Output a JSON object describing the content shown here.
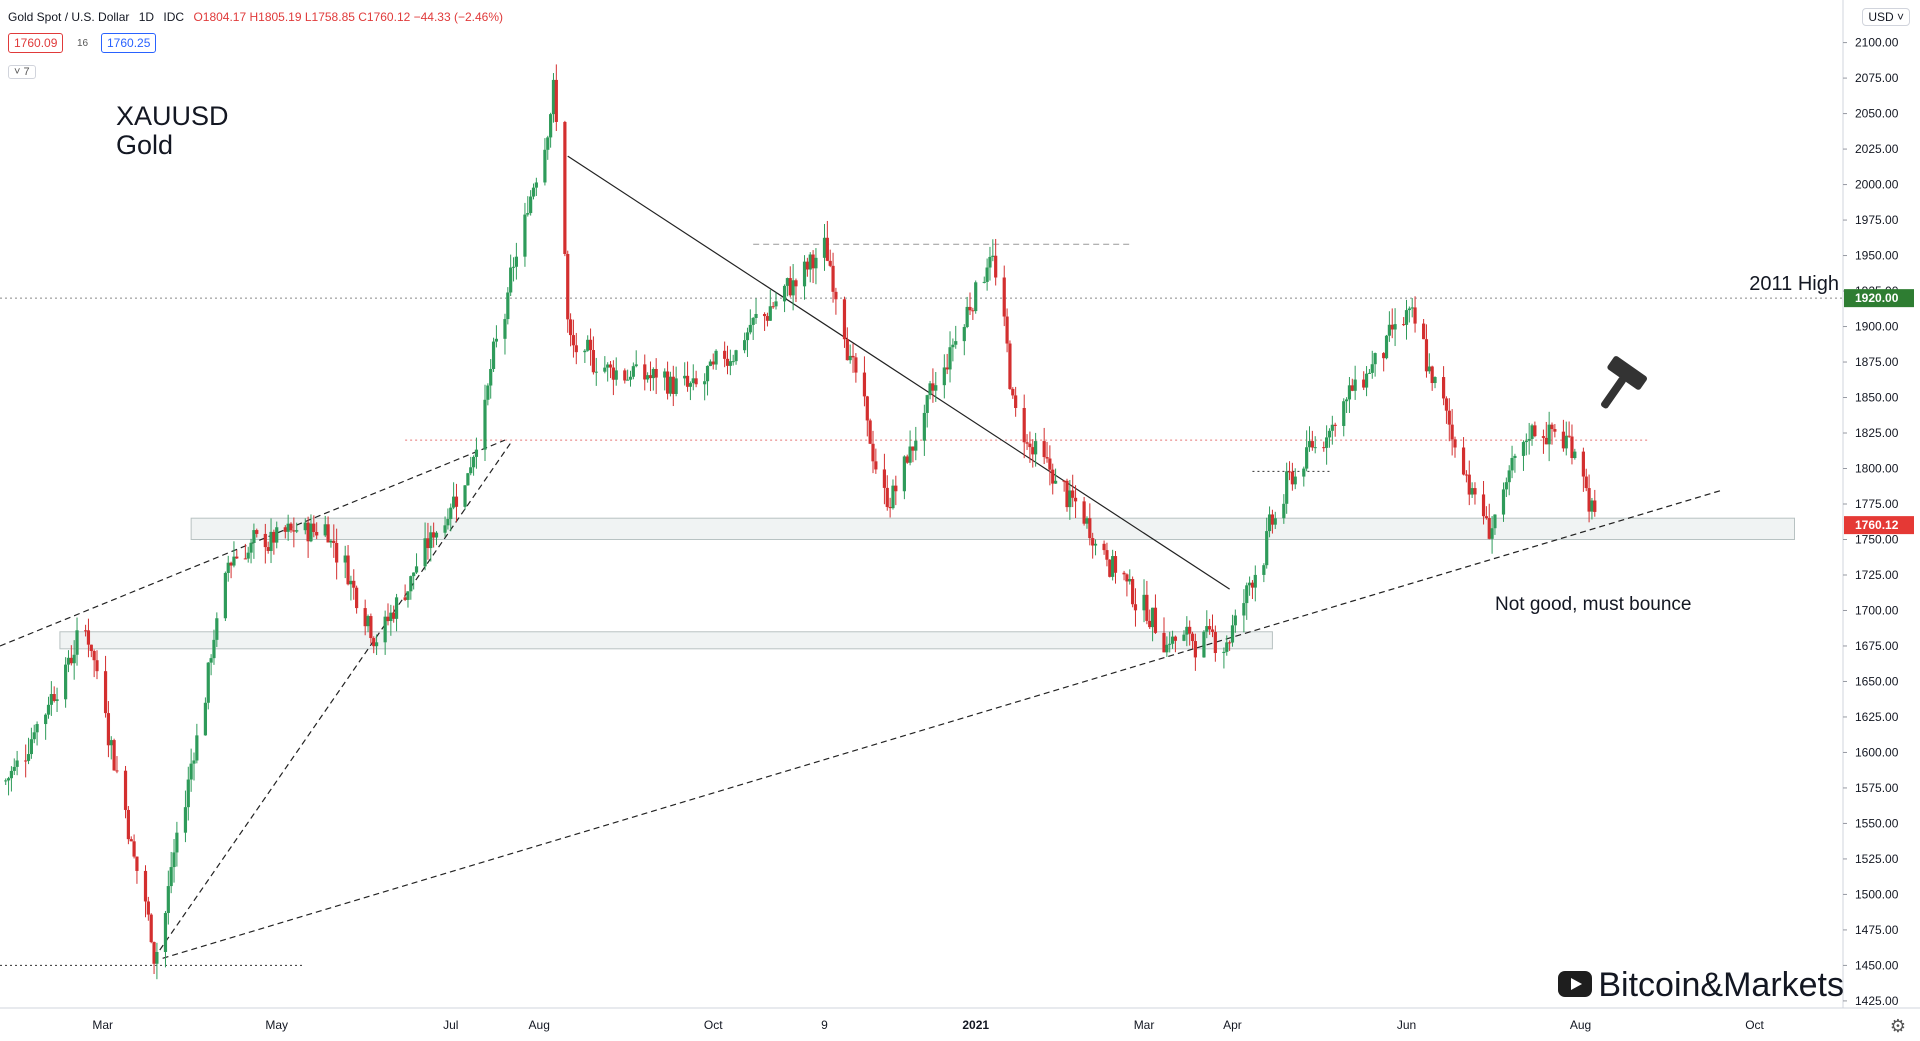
{
  "header": {
    "symbol": "Gold Spot / U.S. Dollar",
    "interval": "1D",
    "source": "IDC",
    "ohlc": "O1804.17 H1805.19 L1758.85 C1760.12 −44.33 (−2.46%)",
    "bid": "1760.09",
    "spread": "16",
    "ask": "1760.25",
    "indicators_toggle": "˅ 7"
  },
  "title": {
    "line1": "XAUUSD",
    "line2": "Gold"
  },
  "annotations": {
    "high": "2011 High",
    "bounce": "Not good, must bounce"
  },
  "currency": "USD ˅",
  "settings_icon": "⚙",
  "watermark": {
    "text": "Bitcoin&Markets",
    "icon": "youtube-icon"
  },
  "colors": {
    "up": "#26a69a",
    "down": "#ef5350",
    "candle_up": "#2e9b5a",
    "candle_down": "#d32f2f",
    "price_tag": "#e53935",
    "high_tag": "#2e7d32"
  },
  "chart_data": {
    "type": "candlestick",
    "y_axis": {
      "ticks": [
        1425,
        1450,
        1475,
        1500,
        1525,
        1550,
        1575,
        1600,
        1625,
        1650,
        1675,
        1700,
        1725,
        1750,
        1775,
        1800,
        1825,
        1850,
        1875,
        1900,
        1925,
        1950,
        1975,
        2000,
        2025,
        2050,
        2075,
        2100
      ],
      "tick_labels": [
        "1425.00",
        "1450.00",
        "1475.00",
        "1500.00",
        "1525.00",
        "1550.00",
        "1575.00",
        "1600.00",
        "1625.00",
        "1650.00",
        "1675.00",
        "1700.00",
        "1725.00",
        "1750.00",
        "1775.00",
        "1800.00",
        "1825.00",
        "1850.00",
        "1875.00",
        "1900.00",
        "1925.00",
        "1950.00",
        "1975.00",
        "2000.00",
        "2025.00",
        "2050.00",
        "2075.00",
        "2100.00"
      ],
      "range": [
        1420,
        2130
      ]
    },
    "x_axis": {
      "labels": [
        {
          "t": "Mar",
          "date": "2020-03-01"
        },
        {
          "t": "May",
          "date": "2020-05-01"
        },
        {
          "t": "Jul",
          "date": "2020-07-01"
        },
        {
          "t": "Aug",
          "date": "2020-08-01"
        },
        {
          "t": "Oct",
          "date": "2020-10-01"
        },
        {
          "t": "9",
          "date": "2020-11-09"
        },
        {
          "t": "2021",
          "date": "2021-01-01"
        },
        {
          "t": "Mar",
          "date": "2021-03-01"
        },
        {
          "t": "Apr",
          "date": "2021-04-01"
        },
        {
          "t": "Jun",
          "date": "2021-06-01"
        },
        {
          "t": "Aug",
          "date": "2021-08-01"
        },
        {
          "t": "Oct",
          "date": "2021-10-01"
        }
      ],
      "range": [
        "2020-01-25",
        "2021-11-01"
      ]
    },
    "last_price": 1760.12,
    "last_price_label": "1760.12",
    "level_2011_high": 1920.0,
    "level_2011_high_label": "1920.00",
    "key_points": [
      {
        "date": "2020-01-27",
        "price": 1580
      },
      {
        "date": "2020-02-24",
        "price": 1690
      },
      {
        "date": "2020-03-19",
        "price": 1455
      },
      {
        "date": "2020-04-14",
        "price": 1740
      },
      {
        "date": "2020-05-18",
        "price": 1760
      },
      {
        "date": "2020-06-05",
        "price": 1680
      },
      {
        "date": "2020-07-07",
        "price": 1800
      },
      {
        "date": "2020-08-06",
        "price": 2070
      },
      {
        "date": "2020-08-11",
        "price": 1880
      },
      {
        "date": "2020-09-24",
        "price": 1855
      },
      {
        "date": "2020-11-09",
        "price": 1955
      },
      {
        "date": "2020-11-30",
        "price": 1770
      },
      {
        "date": "2021-01-06",
        "price": 1955
      },
      {
        "date": "2021-01-15",
        "price": 1830
      },
      {
        "date": "2021-03-08",
        "price": 1680
      },
      {
        "date": "2021-03-30",
        "price": 1680
      },
      {
        "date": "2021-04-20",
        "price": 1790
      },
      {
        "date": "2021-06-01",
        "price": 1910
      },
      {
        "date": "2021-06-29",
        "price": 1755
      },
      {
        "date": "2021-07-15",
        "price": 1830
      },
      {
        "date": "2021-07-30",
        "price": 1815
      },
      {
        "date": "2021-08-06",
        "price": 1760
      }
    ],
    "drawings": {
      "support_zones": [
        {
          "from": "2020-04-01",
          "to": "2021-10-15",
          "low": 1750,
          "high": 1765
        },
        {
          "from": "2020-02-15",
          "to": "2021-04-15",
          "low": 1673,
          "high": 1685
        }
      ],
      "horizontal_lines": [
        {
          "price": 1920,
          "style": "dotted",
          "color": "#888"
        },
        {
          "price": 1820,
          "from": "2020-06-15",
          "to": "2021-08-25",
          "style": "dotted",
          "color": "#e57373"
        },
        {
          "price": 1958,
          "from": "2020-10-15",
          "to": "2021-02-25",
          "style": "dashed",
          "color": "#999"
        },
        {
          "price": 1450,
          "from": "2020-01-25",
          "to": "2020-05-10",
          "style": "dotted",
          "color": "#333"
        },
        {
          "price": 1798,
          "from": "2021-04-08",
          "to": "2021-05-05",
          "style": "dotted",
          "color": "#333"
        }
      ],
      "trend_lines": [
        {
          "from": {
            "date": "2020-08-11",
            "price": 2020
          },
          "to": {
            "date": "2021-03-31",
            "price": 1715
          },
          "style": "solid"
        },
        {
          "from": {
            "date": "2020-01-25",
            "price": 1675
          },
          "to": {
            "date": "2020-07-20",
            "price": 1820
          },
          "style": "dashed"
        },
        {
          "from": {
            "date": "2020-03-19",
            "price": 1455
          },
          "to": {
            "date": "2020-07-22",
            "price": 1818
          },
          "style": "dashed"
        },
        {
          "from": {
            "date": "2020-03-22",
            "price": 1455
          },
          "to": {
            "date": "2021-09-20",
            "price": 1785
          },
          "style": "dashed"
        }
      ]
    }
  }
}
